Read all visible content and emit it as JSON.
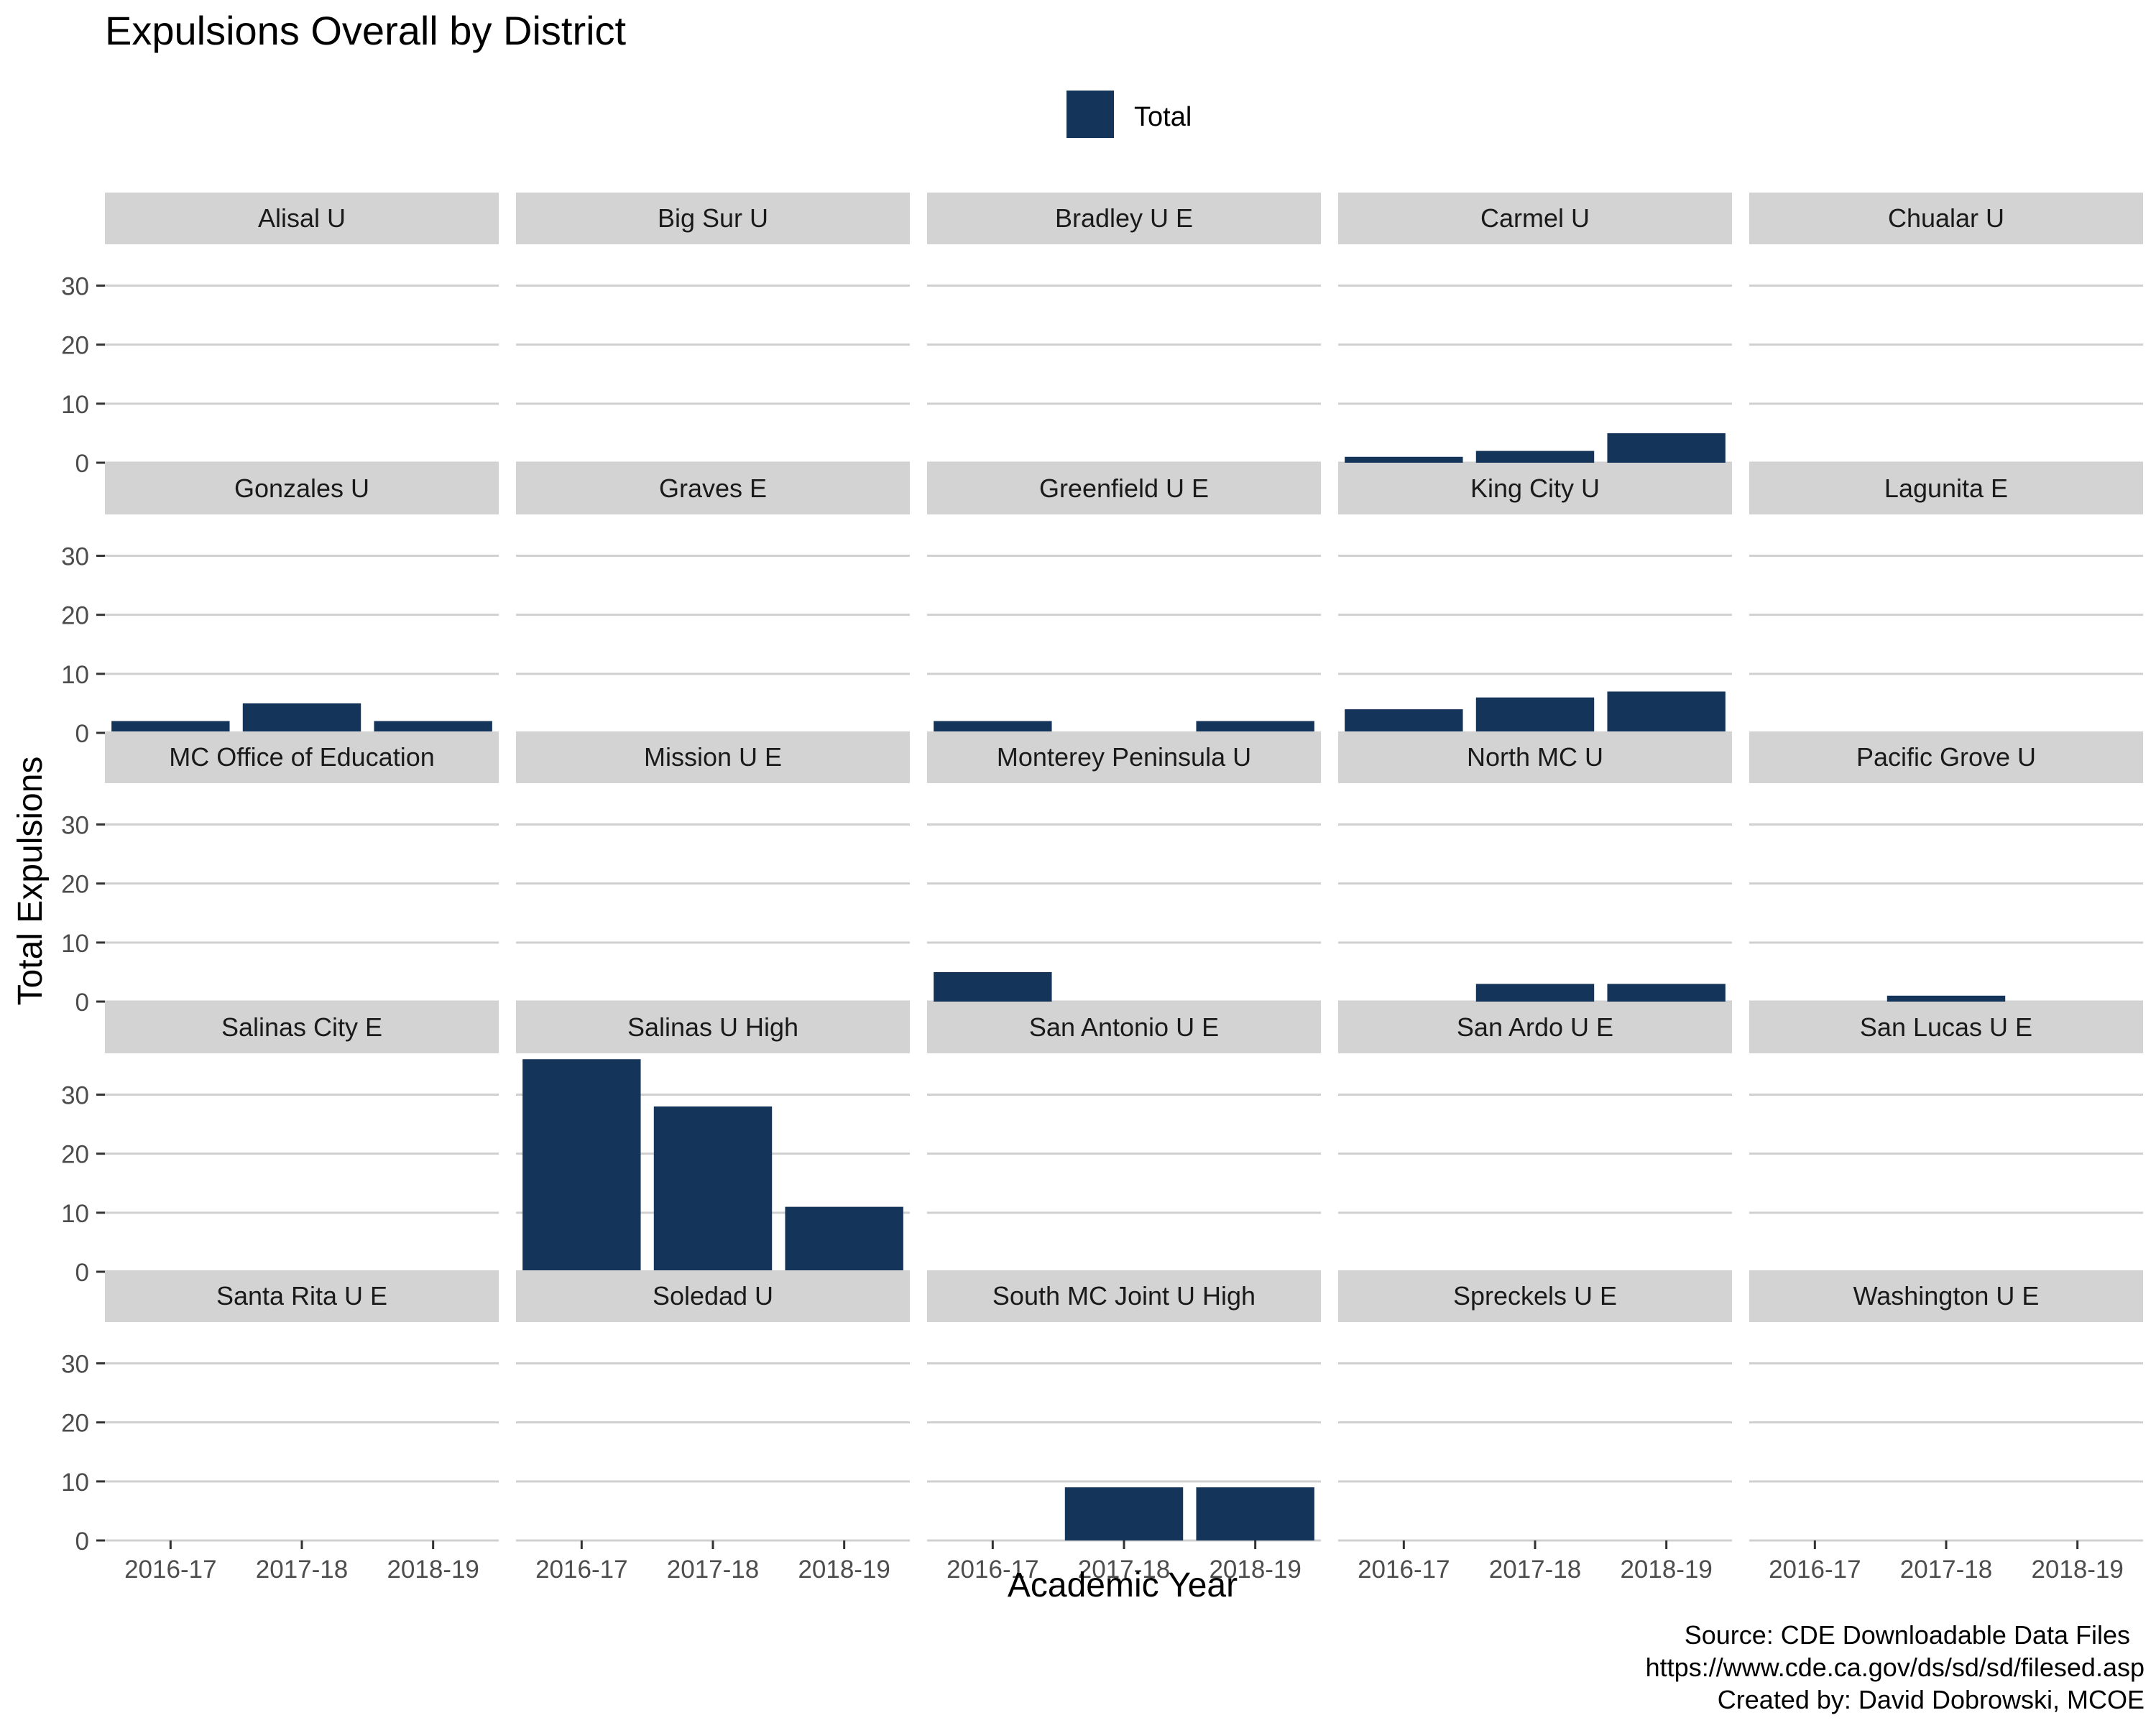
{
  "chart_data": {
    "type": "bar",
    "layout": "facet-grid",
    "title": "Expulsions Overall by District",
    "xlabel": "Academic Year",
    "ylabel": "Total Expulsions",
    "categories": [
      "2016-17",
      "2017-18",
      "2018-19"
    ],
    "ylim": [
      0,
      37
    ],
    "yticks": [
      0,
      10,
      20,
      30
    ],
    "grid": "horizontal",
    "legend": {
      "position": "top",
      "entries": [
        {
          "name": "Total",
          "color": "#15345a"
        }
      ]
    },
    "bar_color": "#15345a",
    "facets": [
      {
        "name": "Alisal U",
        "values": [
          0,
          0,
          0
        ]
      },
      {
        "name": "Big Sur U",
        "values": [
          0,
          0,
          0
        ]
      },
      {
        "name": "Bradley U E",
        "values": [
          0,
          0,
          0
        ]
      },
      {
        "name": "Carmel U",
        "values": [
          1,
          2,
          5
        ]
      },
      {
        "name": "Chualar U",
        "values": [
          0,
          0,
          0
        ]
      },
      {
        "name": "Gonzales U",
        "values": [
          2,
          5,
          2
        ]
      },
      {
        "name": "Graves E",
        "values": [
          0,
          0,
          0
        ]
      },
      {
        "name": "Greenfield U E",
        "values": [
          2,
          0,
          2
        ]
      },
      {
        "name": "King City U",
        "values": [
          4,
          6,
          7
        ]
      },
      {
        "name": "Lagunita E",
        "values": [
          0,
          0,
          0
        ]
      },
      {
        "name": "MC Office of Education",
        "values": [
          0,
          0,
          0
        ]
      },
      {
        "name": "Mission U E",
        "values": [
          0,
          0,
          0
        ]
      },
      {
        "name": "Monterey Peninsula U",
        "values": [
          5,
          0,
          0
        ]
      },
      {
        "name": "North MC U",
        "values": [
          0,
          3,
          3
        ]
      },
      {
        "name": "Pacific Grove U",
        "values": [
          0,
          1,
          0
        ]
      },
      {
        "name": "Salinas City E",
        "values": [
          0,
          0,
          0
        ]
      },
      {
        "name": "Salinas U High",
        "values": [
          36,
          28,
          11
        ]
      },
      {
        "name": "San Antonio U E",
        "values": [
          0,
          0,
          0
        ]
      },
      {
        "name": "San Ardo U E",
        "values": [
          0,
          0,
          0
        ]
      },
      {
        "name": "San Lucas U E",
        "values": [
          0,
          0,
          0
        ]
      },
      {
        "name": "Santa Rita U E",
        "values": [
          0,
          0,
          0
        ]
      },
      {
        "name": "Soledad U",
        "values": [
          0,
          0,
          0
        ]
      },
      {
        "name": "South MC Joint U High",
        "values": [
          0,
          9,
          9
        ]
      },
      {
        "name": "Spreckels U E",
        "values": [
          0,
          0,
          0
        ]
      },
      {
        "name": "Washington U E",
        "values": [
          0,
          0,
          0
        ]
      }
    ],
    "caption": [
      "Source: CDE Downloadable Data Files",
      "https://www.cde.ca.gov/ds/sd/sd/filesed.asp",
      "Created by: David Dobrowski, MCOE"
    ]
  }
}
